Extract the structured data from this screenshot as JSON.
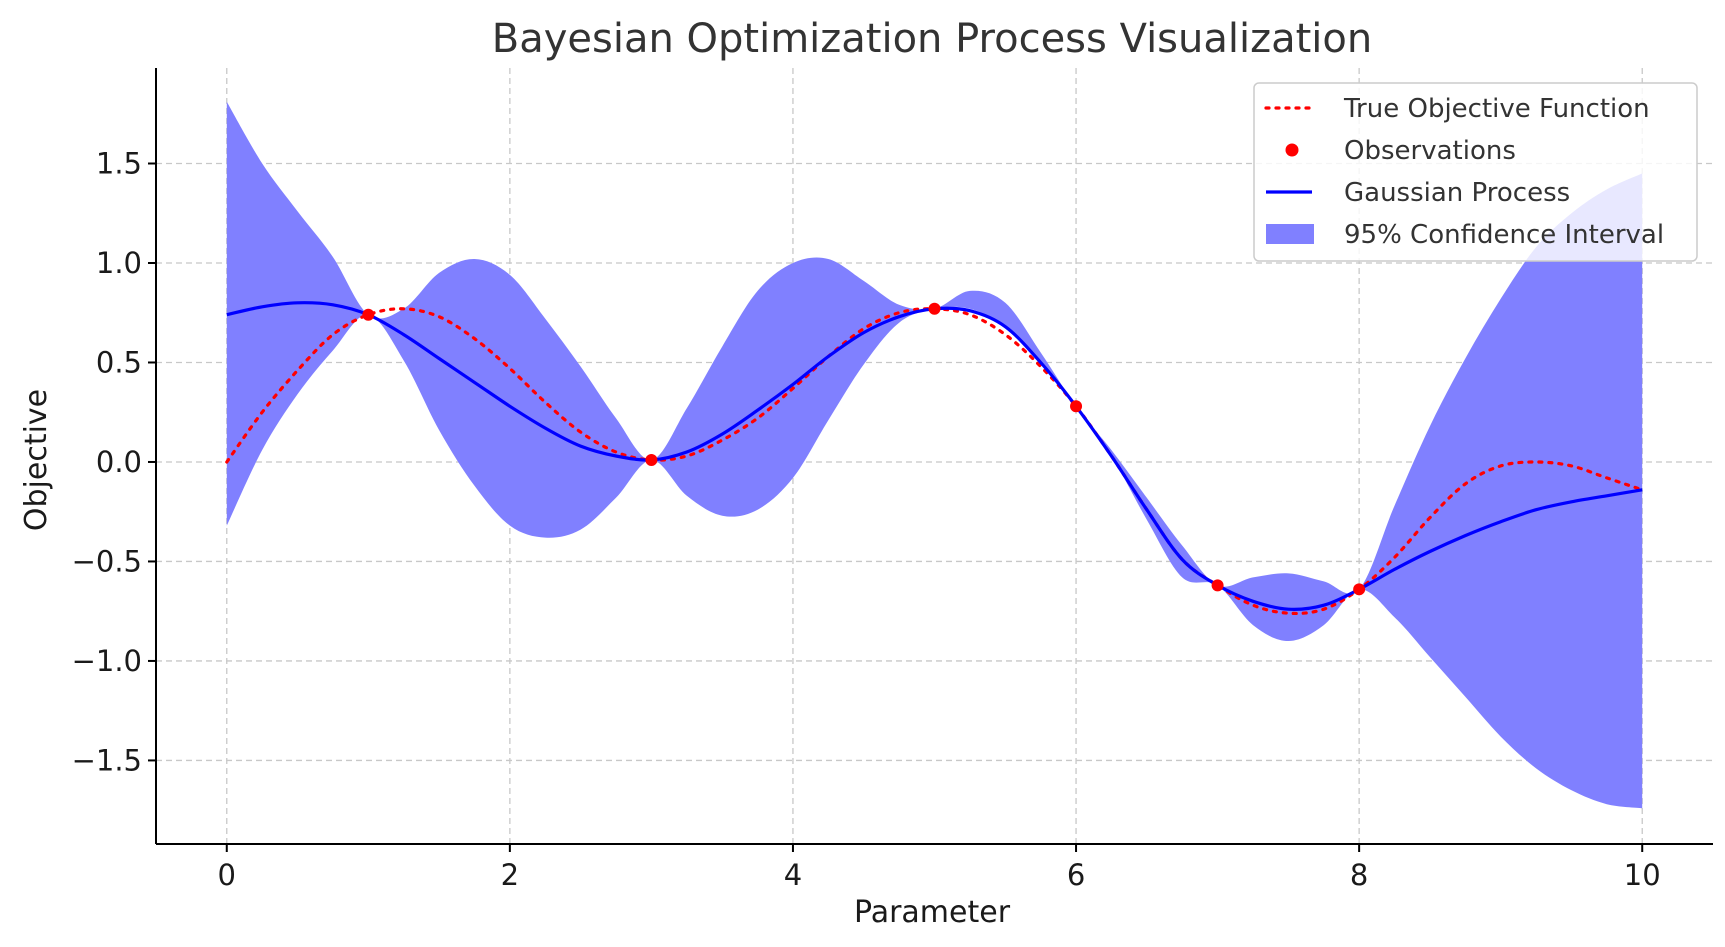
{
  "chart_data": {
    "type": "line",
    "title": "Bayesian Optimization Process Visualization",
    "xlabel": "Parameter",
    "ylabel": "Objective",
    "xlim": [
      -0.5,
      10.5
    ],
    "ylim": [
      -1.92,
      1.98
    ],
    "grid": true,
    "xticks": [
      0,
      2,
      4,
      6,
      8,
      10
    ],
    "xtick_labels": [
      "0",
      "2",
      "4",
      "6",
      "8",
      "10"
    ],
    "yticks": [
      -1.5,
      -1.0,
      -0.5,
      0.0,
      0.5,
      1.0,
      1.5
    ],
    "ytick_labels": [
      "−1.5",
      "−1.0",
      "−0.5",
      "0.0",
      "0.5",
      "1.0",
      "1.5"
    ],
    "legend_position": "top-right",
    "x": [
      0,
      0.25,
      0.5,
      0.75,
      1,
      1.25,
      1.5,
      1.75,
      2,
      2.25,
      2.5,
      2.75,
      3,
      3.25,
      3.5,
      3.75,
      4,
      4.25,
      4.5,
      4.75,
      5,
      5.25,
      5.5,
      5.75,
      6,
      6.25,
      6.5,
      6.75,
      7,
      7.25,
      7.5,
      7.75,
      8,
      8.25,
      8.5,
      8.75,
      9,
      9.25,
      9.5,
      9.75,
      10
    ],
    "series": [
      {
        "name": "True Objective Function",
        "kind": "line",
        "style": "dotted",
        "color": "#ff0000",
        "values": [
          0.0,
          0.25,
          0.46,
          0.64,
          0.74,
          0.77,
          0.73,
          0.62,
          0.47,
          0.3,
          0.15,
          0.05,
          0.01,
          0.03,
          0.11,
          0.22,
          0.37,
          0.53,
          0.67,
          0.75,
          0.77,
          0.74,
          0.64,
          0.48,
          0.28,
          0.03,
          -0.24,
          -0.49,
          -0.62,
          -0.72,
          -0.76,
          -0.74,
          -0.64,
          -0.48,
          -0.28,
          -0.11,
          -0.02,
          0.0,
          -0.02,
          -0.08,
          -0.14
        ]
      },
      {
        "name": "Observations",
        "kind": "scatter",
        "color": "#ff0000",
        "x": [
          1,
          3,
          5,
          6,
          7,
          8
        ],
        "values": [
          0.74,
          0.01,
          0.77,
          0.28,
          -0.62,
          -0.64
        ]
      },
      {
        "name": "Gaussian Process",
        "kind": "line",
        "style": "solid",
        "color": "#0000ff",
        "values": [
          0.74,
          0.78,
          0.8,
          0.79,
          0.74,
          0.64,
          0.52,
          0.4,
          0.28,
          0.17,
          0.08,
          0.03,
          0.01,
          0.05,
          0.14,
          0.26,
          0.39,
          0.53,
          0.65,
          0.73,
          0.77,
          0.76,
          0.68,
          0.5,
          0.28,
          0.03,
          -0.24,
          -0.49,
          -0.62,
          -0.7,
          -0.74,
          -0.72,
          -0.64,
          -0.54,
          -0.45,
          -0.37,
          -0.3,
          -0.24,
          -0.2,
          -0.17,
          -0.14
        ]
      },
      {
        "name": "95% Confidence Interval",
        "kind": "band",
        "color": "#8080ff",
        "lower": [
          -0.32,
          0.06,
          0.34,
          0.56,
          0.74,
          0.51,
          0.16,
          -0.12,
          -0.32,
          -0.38,
          -0.34,
          -0.18,
          0.01,
          -0.17,
          -0.27,
          -0.24,
          -0.08,
          0.21,
          0.49,
          0.7,
          0.77,
          0.77,
          0.68,
          0.5,
          0.28,
          0.03,
          -0.29,
          -0.58,
          -0.62,
          -0.82,
          -0.9,
          -0.82,
          -0.64,
          -0.78,
          -0.98,
          -1.18,
          -1.38,
          -1.54,
          -1.65,
          -1.72,
          -1.74
        ],
        "upper": [
          1.81,
          1.5,
          1.26,
          1.03,
          0.74,
          0.77,
          0.95,
          1.02,
          0.94,
          0.72,
          0.48,
          0.22,
          0.01,
          0.27,
          0.58,
          0.86,
          1.0,
          1.02,
          0.91,
          0.79,
          0.77,
          0.86,
          0.8,
          0.55,
          0.28,
          0.06,
          -0.18,
          -0.42,
          -0.62,
          -0.58,
          -0.56,
          -0.6,
          -0.64,
          -0.22,
          0.18,
          0.52,
          0.82,
          1.08,
          1.25,
          1.37,
          1.45
        ]
      }
    ]
  }
}
